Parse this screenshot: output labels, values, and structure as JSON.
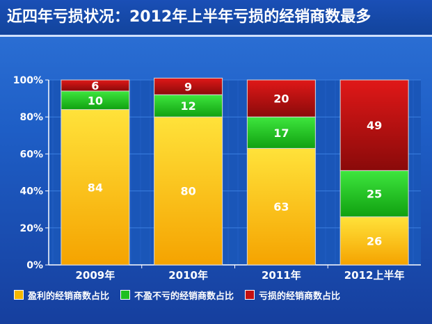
{
  "title": "近四年亏损状况：2012年上半年亏损的经销商数最多",
  "colors": {
    "profit": "#f5b800",
    "breakeven": "#1fbf1f",
    "loss": "#c41010",
    "plot_bg": "#1a56b8",
    "grid": "#3b7fe0",
    "axis_text": "#ffffff",
    "bar_label": "#ffffff"
  },
  "chart_data": {
    "type": "bar",
    "stacked": true,
    "categories": [
      "2009年",
      "2010年",
      "2011年",
      "2012上半年"
    ],
    "series": [
      {
        "name": "盈利的经销商数占比",
        "key": "profit",
        "values": [
          84,
          80,
          63,
          26
        ]
      },
      {
        "name": "不盈不亏的经销商数占比",
        "key": "breakeven",
        "values": [
          10,
          12,
          17,
          25
        ]
      },
      {
        "name": "亏损的经销商数占比",
        "key": "loss",
        "values": [
          6,
          9,
          20,
          49
        ]
      }
    ],
    "ylim": [
      0,
      100
    ],
    "yticks": [
      "0%",
      "20%",
      "40%",
      "60%",
      "80%",
      "100%"
    ],
    "grid": true,
    "legend_position": "bottom"
  }
}
